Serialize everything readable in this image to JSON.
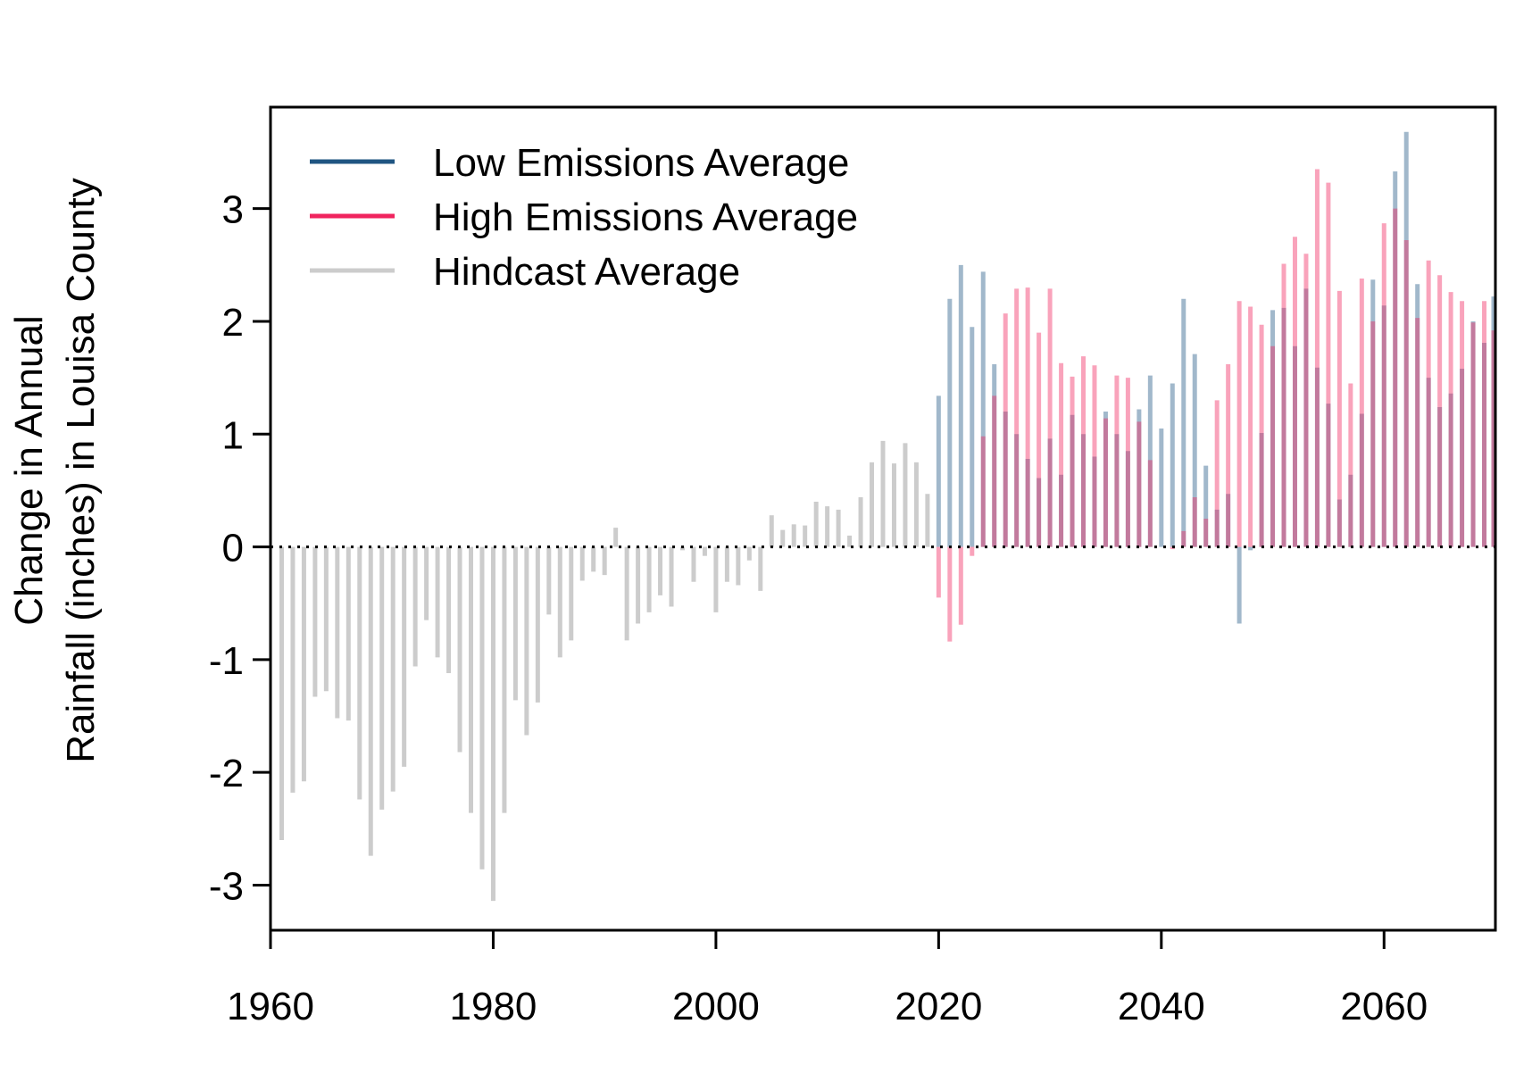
{
  "chart_data": {
    "type": "bar",
    "title": "",
    "xlabel": "",
    "ylabel_lines": [
      "Change in Annual",
      "Rainfall (inches) in Louisa County"
    ],
    "xlim": [
      1960,
      2070
    ],
    "ylim": [
      -3.4,
      3.9
    ],
    "xticks": [
      1960,
      1980,
      2000,
      2020,
      2040,
      2060
    ],
    "yticks": [
      -3,
      -2,
      -1,
      0,
      1,
      2,
      3
    ],
    "zero_line": "dotted",
    "grid": false,
    "legend_position": "top-left",
    "legend": [
      {
        "label": "Low Emissions Average",
        "color": "#1f5582"
      },
      {
        "label": "High Emissions Average",
        "color": "#f0245e"
      },
      {
        "label": "Hindcast Average",
        "color": "#cccccc"
      }
    ],
    "series": [
      {
        "name": "Hindcast Average",
        "color": "#cccccc",
        "x": [
          1961,
          1962,
          1963,
          1964,
          1965,
          1966,
          1967,
          1968,
          1969,
          1970,
          1971,
          1972,
          1973,
          1974,
          1975,
          1976,
          1977,
          1978,
          1979,
          1980,
          1981,
          1982,
          1983,
          1984,
          1985,
          1986,
          1987,
          1988,
          1989,
          1990,
          1991,
          1992,
          1993,
          1994,
          1995,
          1996,
          1997,
          1998,
          1999,
          2000,
          2001,
          2002,
          2003,
          2004,
          2005,
          2006,
          2007,
          2008,
          2009,
          2010,
          2011,
          2012,
          2013,
          2014,
          2015,
          2016,
          2017,
          2018,
          2019
        ],
        "values": [
          -2.6,
          -2.18,
          -2.08,
          -1.33,
          -1.28,
          -1.52,
          -1.54,
          -2.24,
          -2.74,
          -2.33,
          -2.17,
          -1.95,
          -1.06,
          -0.65,
          -0.98,
          -1.12,
          -1.82,
          -2.36,
          -2.86,
          -3.14,
          -2.36,
          -1.36,
          -1.67,
          -1.38,
          -0.6,
          -0.98,
          -0.83,
          -0.3,
          -0.22,
          -0.25,
          0.17,
          -0.83,
          -0.68,
          -0.58,
          -0.43,
          -0.53,
          -0.03,
          -0.31,
          -0.08,
          -0.58,
          -0.31,
          -0.34,
          -0.12,
          -0.39,
          0.28,
          0.15,
          0.2,
          0.19,
          0.4,
          0.36,
          0.33,
          0.1,
          0.44,
          0.75,
          0.94,
          0.74,
          0.92,
          0.75,
          0.47
        ]
      },
      {
        "name": "Low Emissions Average",
        "color": "#1f5582",
        "x": [
          2020,
          2021,
          2022,
          2023,
          2024,
          2025,
          2026,
          2027,
          2028,
          2029,
          2030,
          2031,
          2032,
          2033,
          2034,
          2035,
          2036,
          2037,
          2038,
          2039,
          2040,
          2041,
          2042,
          2043,
          2044,
          2045,
          2046,
          2047,
          2048,
          2049,
          2050,
          2051,
          2052,
          2053,
          2054,
          2055,
          2056,
          2057,
          2058,
          2059,
          2060,
          2061,
          2062,
          2063,
          2064,
          2065,
          2066,
          2067,
          2068,
          2069,
          2070
        ],
        "values": [
          1.34,
          2.2,
          2.5,
          1.95,
          2.44,
          1.62,
          1.2,
          1.0,
          0.78,
          0.61,
          0.96,
          0.64,
          1.17,
          1.0,
          0.8,
          1.2,
          1.0,
          0.85,
          1.22,
          1.52,
          1.05,
          1.45,
          2.2,
          1.71,
          0.72,
          0.33,
          0.47,
          -0.68,
          -0.03,
          1.01,
          2.1,
          2.12,
          1.78,
          2.29,
          1.59,
          1.27,
          0.42,
          0.64,
          1.18,
          2.37,
          2.14,
          3.33,
          3.68,
          2.33,
          1.5,
          1.24,
          1.36,
          1.58,
          2.0,
          1.81,
          2.22
        ]
      },
      {
        "name": "High Emissions Average",
        "color": "#f0245e",
        "x": [
          2020,
          2021,
          2022,
          2023,
          2024,
          2025,
          2026,
          2027,
          2028,
          2029,
          2030,
          2031,
          2032,
          2033,
          2034,
          2035,
          2036,
          2037,
          2038,
          2039,
          2040,
          2041,
          2042,
          2043,
          2044,
          2045,
          2046,
          2047,
          2048,
          2049,
          2050,
          2051,
          2052,
          2053,
          2054,
          2055,
          2056,
          2057,
          2058,
          2059,
          2060,
          2061,
          2062,
          2063,
          2064,
          2065,
          2066,
          2067,
          2068,
          2069,
          2070
        ],
        "values": [
          -0.45,
          -0.84,
          -0.69,
          -0.08,
          0.98,
          1.34,
          2.07,
          2.29,
          2.3,
          1.9,
          2.29,
          1.63,
          1.51,
          1.69,
          1.61,
          1.14,
          1.52,
          1.5,
          1.11,
          0.77,
          0.0,
          -0.02,
          0.14,
          0.44,
          0.25,
          1.3,
          1.62,
          2.18,
          2.13,
          1.97,
          1.78,
          2.51,
          2.75,
          2.6,
          3.35,
          3.23,
          2.27,
          1.45,
          2.38,
          2.0,
          2.87,
          3.0,
          2.72,
          2.03,
          2.54,
          2.41,
          2.26,
          2.18,
          1.99,
          2.18,
          1.92
        ]
      }
    ]
  }
}
